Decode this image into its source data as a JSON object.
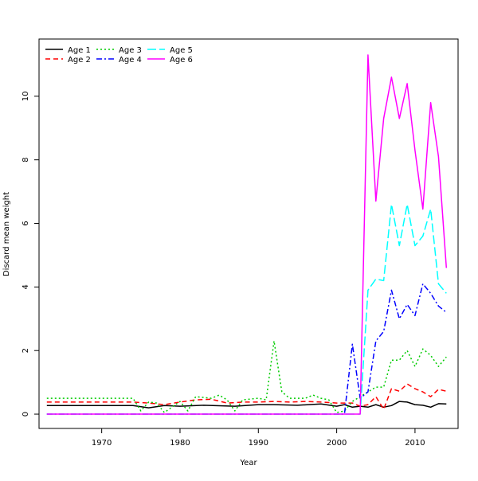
{
  "chart_data": {
    "type": "line",
    "title": "",
    "xlabel": "Year",
    "ylabel": "Discard mean weight",
    "xlim": [
      1962,
      2015.5
    ],
    "ylim": [
      -0.45,
      11.8
    ],
    "xticks": [
      1970,
      1980,
      1990,
      2000,
      2010
    ],
    "yticks": [
      0,
      2,
      4,
      6,
      8,
      10
    ],
    "grid": false,
    "legend_position": "top-left",
    "series": [
      {
        "name": "Age 1",
        "color": "#000000",
        "dash": "solid",
        "points": [
          [
            1963,
            0.27
          ],
          [
            1974,
            0.27
          ],
          [
            1976,
            0.2
          ],
          [
            1978,
            0.27
          ],
          [
            1980,
            0.25
          ],
          [
            1983,
            0.28
          ],
          [
            1987,
            0.25
          ],
          [
            1990,
            0.3
          ],
          [
            1992,
            0.3
          ],
          [
            1995,
            0.28
          ],
          [
            1998,
            0.32
          ],
          [
            2000,
            0.25
          ],
          [
            2001,
            0.3
          ],
          [
            2002,
            0.22
          ],
          [
            2003,
            0.25
          ],
          [
            2004,
            0.22
          ],
          [
            2005,
            0.3
          ],
          [
            2006,
            0.22
          ],
          [
            2007,
            0.27
          ],
          [
            2008,
            0.4
          ],
          [
            2009,
            0.38
          ],
          [
            2010,
            0.3
          ],
          [
            2011,
            0.28
          ],
          [
            2012,
            0.22
          ],
          [
            2013,
            0.33
          ],
          [
            2014,
            0.32
          ]
        ]
      },
      {
        "name": "Age 2",
        "color": "#ff0000",
        "dash": "dashed",
        "points": [
          [
            1963,
            0.38
          ],
          [
            1974,
            0.38
          ],
          [
            1976,
            0.35
          ],
          [
            1978,
            0.3
          ],
          [
            1980,
            0.38
          ],
          [
            1982,
            0.45
          ],
          [
            1984,
            0.47
          ],
          [
            1986,
            0.35
          ],
          [
            1988,
            0.38
          ],
          [
            1990,
            0.38
          ],
          [
            1992,
            0.4
          ],
          [
            1994,
            0.38
          ],
          [
            1996,
            0.4
          ],
          [
            1998,
            0.38
          ],
          [
            2000,
            0.35
          ],
          [
            2002,
            0.35
          ],
          [
            2003,
            0.25
          ],
          [
            2004,
            0.3
          ],
          [
            2005,
            0.55
          ],
          [
            2006,
            0.15
          ],
          [
            2007,
            0.8
          ],
          [
            2008,
            0.72
          ],
          [
            2009,
            0.95
          ],
          [
            2010,
            0.8
          ],
          [
            2011,
            0.7
          ],
          [
            2012,
            0.55
          ],
          [
            2013,
            0.78
          ],
          [
            2014,
            0.72
          ]
        ]
      },
      {
        "name": "Age 3",
        "color": "#00cc00",
        "dash": "dotted",
        "points": [
          [
            1963,
            0.5
          ],
          [
            1974,
            0.5
          ],
          [
            1975,
            0.1
          ],
          [
            1976,
            0.38
          ],
          [
            1977,
            0.35
          ],
          [
            1978,
            0.05
          ],
          [
            1980,
            0.4
          ],
          [
            1981,
            0.1
          ],
          [
            1982,
            0.55
          ],
          [
            1984,
            0.5
          ],
          [
            1985,
            0.6
          ],
          [
            1986,
            0.45
          ],
          [
            1987,
            0.1
          ],
          [
            1988,
            0.45
          ],
          [
            1990,
            0.5
          ],
          [
            1991,
            0.45
          ],
          [
            1992,
            2.3
          ],
          [
            1993,
            0.7
          ],
          [
            1994,
            0.5
          ],
          [
            1995,
            0.5
          ],
          [
            1996,
            0.5
          ],
          [
            1997,
            0.6
          ],
          [
            1998,
            0.5
          ],
          [
            1999,
            0.45
          ],
          [
            2000,
            0.05
          ],
          [
            2001,
            0.1
          ],
          [
            2002,
            0.4
          ],
          [
            2003,
            0.55
          ],
          [
            2004,
            0.7
          ],
          [
            2005,
            0.85
          ],
          [
            2006,
            0.85
          ],
          [
            2007,
            1.7
          ],
          [
            2008,
            1.7
          ],
          [
            2009,
            2.0
          ],
          [
            2010,
            1.5
          ],
          [
            2011,
            2.05
          ],
          [
            2012,
            1.85
          ],
          [
            2013,
            1.5
          ],
          [
            2014,
            1.8
          ]
        ]
      },
      {
        "name": "Age 4",
        "color": "#0000ff",
        "dash": "dashdot",
        "points": [
          [
            1963,
            0.0
          ],
          [
            2001,
            0.0
          ],
          [
            2002,
            2.2
          ],
          [
            2003,
            0.5
          ],
          [
            2004,
            0.7
          ],
          [
            2005,
            2.3
          ],
          [
            2006,
            2.6
          ],
          [
            2007,
            3.9
          ],
          [
            2008,
            3.0
          ],
          [
            2009,
            3.45
          ],
          [
            2010,
            3.1
          ],
          [
            2011,
            4.1
          ],
          [
            2012,
            3.8
          ],
          [
            2013,
            3.4
          ],
          [
            2014,
            3.2
          ]
        ]
      },
      {
        "name": "Age 5",
        "color": "#00ffff",
        "dash": "longdash",
        "points": [
          [
            1963,
            0.0
          ],
          [
            2003,
            0.0
          ],
          [
            2004,
            3.9
          ],
          [
            2005,
            4.25
          ],
          [
            2006,
            4.2
          ],
          [
            2007,
            6.6
          ],
          [
            2008,
            5.3
          ],
          [
            2009,
            6.6
          ],
          [
            2010,
            5.3
          ],
          [
            2011,
            5.6
          ],
          [
            2012,
            6.45
          ],
          [
            2013,
            4.1
          ],
          [
            2014,
            3.8
          ]
        ]
      },
      {
        "name": "Age 6",
        "color": "#ff00ff",
        "dash": "solid",
        "points": [
          [
            1963,
            0.0
          ],
          [
            2003,
            0.0
          ],
          [
            2004,
            11.3
          ],
          [
            2005,
            6.7
          ],
          [
            2006,
            9.3
          ],
          [
            2007,
            10.6
          ],
          [
            2008,
            9.3
          ],
          [
            2009,
            10.4
          ],
          [
            2010,
            8.3
          ],
          [
            2011,
            6.45
          ],
          [
            2012,
            9.8
          ],
          [
            2013,
            8.1
          ],
          [
            2014,
            4.6
          ]
        ]
      }
    ]
  }
}
